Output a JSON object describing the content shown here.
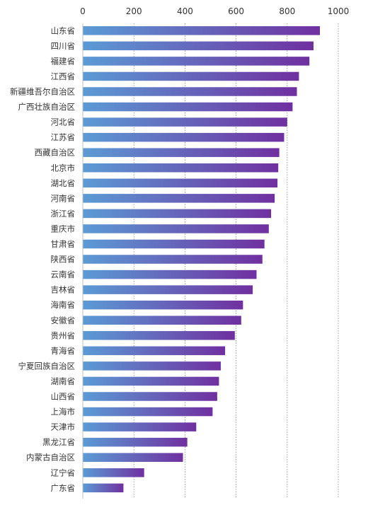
{
  "chart_data": {
    "type": "bar",
    "orientation": "horizontal",
    "title": "",
    "xlabel": "",
    "ylabel": "",
    "xlim": [
      0,
      1000
    ],
    "x_ticks": [
      "0",
      "200",
      "400",
      "600",
      "800",
      "1000"
    ],
    "grid": "vertical dotted",
    "legend": "none",
    "colors": {
      "bar_start": "#5b9bd5",
      "bar_end": "#7030a0"
    },
    "categories": [
      "山东省",
      "四川省",
      "福建省",
      "江西省",
      "新疆维吾尔自治区",
      "广西壮族自治区",
      "河北省",
      "江苏省",
      "西藏自治区",
      "北京市",
      "湖北省",
      "河南省",
      "浙江省",
      "重庆市",
      "甘肃省",
      "陕西省",
      "云南省",
      "吉林省",
      "海南省",
      "安徽省",
      "贵州省",
      "青海省",
      "宁夏回族自治区",
      "湖南省",
      "山西省",
      "上海市",
      "天津市",
      "黑龙江省",
      "内蒙古自治区",
      "辽宁省",
      "广东省"
    ],
    "values": [
      928,
      903,
      887,
      846,
      838,
      821,
      800,
      788,
      769,
      765,
      762,
      751,
      737,
      728,
      711,
      703,
      680,
      665,
      627,
      620,
      595,
      557,
      540,
      533,
      526,
      508,
      444,
      409,
      392,
      240,
      159
    ]
  }
}
